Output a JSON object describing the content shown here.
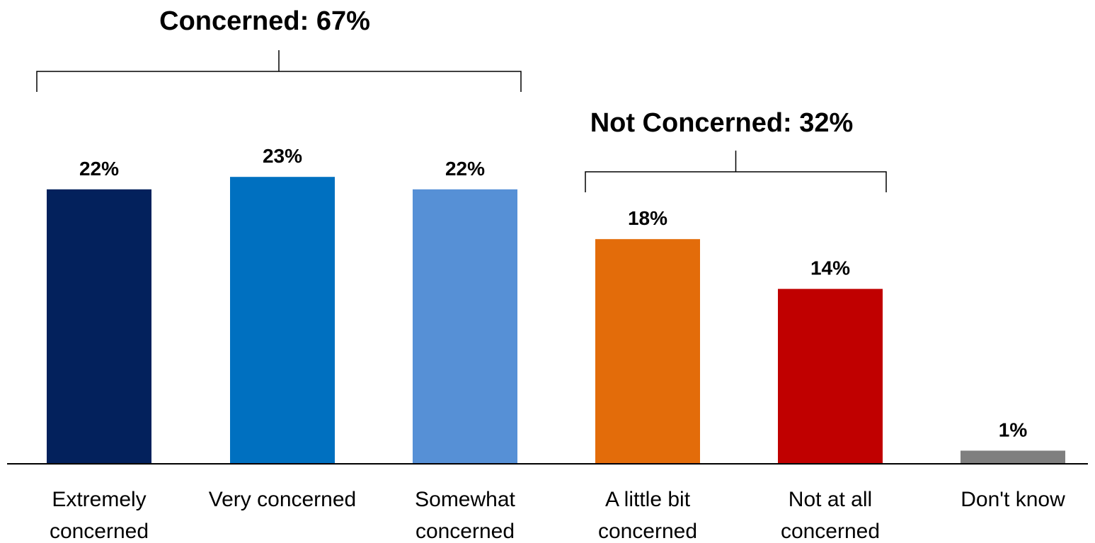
{
  "chart_data": {
    "type": "bar",
    "categories": [
      [
        "Extremely",
        "concerned"
      ],
      [
        "Very concerned"
      ],
      [
        "Somewhat",
        "concerned"
      ],
      [
        "A little bit",
        "concerned"
      ],
      [
        "Not at all",
        "concerned"
      ],
      [
        "Don't know"
      ]
    ],
    "values": [
      22,
      23,
      22,
      18,
      14,
      1
    ],
    "value_labels": [
      "22%",
      "23%",
      "22%",
      "18%",
      "14%",
      "1%"
    ],
    "colors": [
      "#03215C",
      "#0070C0",
      "#5690D6",
      "#E36C0A",
      "#C00000",
      "#7F7F7F"
    ],
    "ylim": [
      0,
      25
    ],
    "grid": false,
    "legend": "none",
    "groups": [
      {
        "label": "Concerned: 67%",
        "from": 0,
        "to": 2
      },
      {
        "label": "Not Concerned: 32%",
        "from": 3,
        "to": 4
      }
    ]
  }
}
